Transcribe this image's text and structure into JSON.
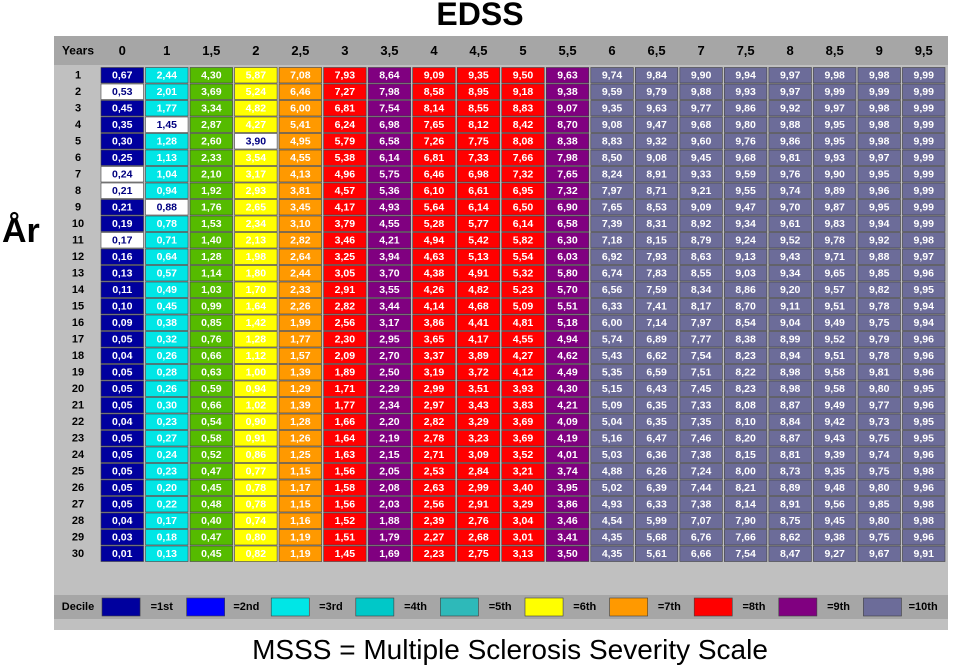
{
  "title": "EDSS",
  "y_axis_label": "År",
  "caption": "MSSS = Multiple Sclerosis Severity Scale",
  "chart_data": {
    "type": "heatmap",
    "title": "EDSS",
    "row_header": "Years",
    "ylabel": "År",
    "columns": [
      "0",
      "1",
      "1,5",
      "2",
      "2,5",
      "3",
      "3,5",
      "4",
      "4,5",
      "5",
      "5,5",
      "6",
      "6,5",
      "7",
      "7,5",
      "8",
      "8,5",
      "9",
      "9,5"
    ],
    "rows": [
      "1",
      "2",
      "3",
      "4",
      "5",
      "6",
      "7",
      "8",
      "9",
      "10",
      "11",
      "12",
      "13",
      "14",
      "15",
      "16",
      "17",
      "18",
      "19",
      "20",
      "21",
      "22",
      "23",
      "24",
      "25",
      "26",
      "27",
      "28",
      "29",
      "30"
    ],
    "values": [
      [
        "0,67",
        "2,44",
        "4,30",
        "5,87",
        "7,08",
        "7,93",
        "8,64",
        "9,09",
        "9,35",
        "9,50",
        "9,63",
        "9,74",
        "9,84",
        "9,90",
        "9,94",
        "9,97",
        "9,98",
        "9,98",
        "9,99"
      ],
      [
        "0,53",
        "2,01",
        "3,69",
        "5,24",
        "6,46",
        "7,27",
        "7,98",
        "8,58",
        "8,95",
        "9,18",
        "9,38",
        "9,59",
        "9,79",
        "9,88",
        "9,93",
        "9,97",
        "9,99",
        "9,99",
        "9,99"
      ],
      [
        "0,45",
        "1,77",
        "3,34",
        "4,82",
        "6,00",
        "6,81",
        "7,54",
        "8,14",
        "8,55",
        "8,83",
        "9,07",
        "9,35",
        "9,63",
        "9,77",
        "9,86",
        "9,92",
        "9,97",
        "9,98",
        "9,99"
      ],
      [
        "0,35",
        "1,45",
        "2,87",
        "4,27",
        "5,41",
        "6,24",
        "6,98",
        "7,65",
        "8,12",
        "8,42",
        "8,70",
        "9,08",
        "9,47",
        "9,68",
        "9,80",
        "9,88",
        "9,95",
        "9,98",
        "9,99"
      ],
      [
        "0,30",
        "1,28",
        "2,60",
        "3,90",
        "4,95",
        "5,79",
        "6,58",
        "7,26",
        "7,75",
        "8,08",
        "8,38",
        "8,83",
        "9,32",
        "9,60",
        "9,76",
        "9,86",
        "9,95",
        "9,98",
        "9,99"
      ],
      [
        "0,25",
        "1,13",
        "2,33",
        "3,54",
        "4,55",
        "5,38",
        "6,14",
        "6,81",
        "7,33",
        "7,66",
        "7,98",
        "8,50",
        "9,08",
        "9,45",
        "9,68",
        "9,81",
        "9,93",
        "9,97",
        "9,99"
      ],
      [
        "0,24",
        "1,04",
        "2,10",
        "3,17",
        "4,13",
        "4,96",
        "5,75",
        "6,46",
        "6,98",
        "7,32",
        "7,65",
        "8,24",
        "8,91",
        "9,33",
        "9,59",
        "9,76",
        "9,90",
        "9,95",
        "9,99"
      ],
      [
        "0,21",
        "0,94",
        "1,92",
        "2,93",
        "3,81",
        "4,57",
        "5,36",
        "6,10",
        "6,61",
        "6,95",
        "7,32",
        "7,97",
        "8,71",
        "9,21",
        "9,55",
        "9,74",
        "9,89",
        "9,96",
        "9,99"
      ],
      [
        "0,21",
        "0,88",
        "1,76",
        "2,65",
        "3,45",
        "4,17",
        "4,93",
        "5,64",
        "6,14",
        "6,50",
        "6,90",
        "7,65",
        "8,53",
        "9,09",
        "9,47",
        "9,70",
        "9,87",
        "9,95",
        "9,99"
      ],
      [
        "0,19",
        "0,78",
        "1,53",
        "2,34",
        "3,10",
        "3,79",
        "4,55",
        "5,28",
        "5,77",
        "6,14",
        "6,58",
        "7,39",
        "8,31",
        "8,92",
        "9,34",
        "9,61",
        "9,83",
        "9,94",
        "9,99"
      ],
      [
        "0,17",
        "0,71",
        "1,40",
        "2,13",
        "2,82",
        "3,46",
        "4,21",
        "4,94",
        "5,42",
        "5,82",
        "6,30",
        "7,18",
        "8,15",
        "8,79",
        "9,24",
        "9,52",
        "9,78",
        "9,92",
        "9,98"
      ],
      [
        "0,16",
        "0,64",
        "1,28",
        "1,98",
        "2,64",
        "3,25",
        "3,94",
        "4,63",
        "5,13",
        "5,54",
        "6,03",
        "6,92",
        "7,93",
        "8,63",
        "9,13",
        "9,43",
        "9,71",
        "9,88",
        "9,97"
      ],
      [
        "0,13",
        "0,57",
        "1,14",
        "1,80",
        "2,44",
        "3,05",
        "3,70",
        "4,38",
        "4,91",
        "5,32",
        "5,80",
        "6,74",
        "7,83",
        "8,55",
        "9,03",
        "9,34",
        "9,65",
        "9,85",
        "9,96"
      ],
      [
        "0,11",
        "0,49",
        "1,03",
        "1,70",
        "2,33",
        "2,91",
        "3,55",
        "4,26",
        "4,82",
        "5,23",
        "5,70",
        "6,56",
        "7,59",
        "8,34",
        "8,86",
        "9,20",
        "9,57",
        "9,82",
        "9,95"
      ],
      [
        "0,10",
        "0,45",
        "0,99",
        "1,64",
        "2,26",
        "2,82",
        "3,44",
        "4,14",
        "4,68",
        "5,09",
        "5,51",
        "6,33",
        "7,41",
        "8,17",
        "8,70",
        "9,11",
        "9,51",
        "9,78",
        "9,94"
      ],
      [
        "0,09",
        "0,38",
        "0,85",
        "1,42",
        "1,99",
        "2,56",
        "3,17",
        "3,86",
        "4,41",
        "4,81",
        "5,18",
        "6,00",
        "7,14",
        "7,97",
        "8,54",
        "9,04",
        "9,49",
        "9,75",
        "9,94"
      ],
      [
        "0,05",
        "0,32",
        "0,76",
        "1,28",
        "1,77",
        "2,30",
        "2,95",
        "3,65",
        "4,17",
        "4,55",
        "4,94",
        "5,74",
        "6,89",
        "7,77",
        "8,38",
        "8,99",
        "9,52",
        "9,79",
        "9,96"
      ],
      [
        "0,04",
        "0,26",
        "0,66",
        "1,12",
        "1,57",
        "2,09",
        "2,70",
        "3,37",
        "3,89",
        "4,27",
        "4,62",
        "5,43",
        "6,62",
        "7,54",
        "8,23",
        "8,94",
        "9,51",
        "9,78",
        "9,96"
      ],
      [
        "0,05",
        "0,28",
        "0,63",
        "1,00",
        "1,39",
        "1,89",
        "2,50",
        "3,19",
        "3,72",
        "4,12",
        "4,49",
        "5,35",
        "6,59",
        "7,51",
        "8,22",
        "8,98",
        "9,58",
        "9,81",
        "9,96"
      ],
      [
        "0,05",
        "0,26",
        "0,59",
        "0,94",
        "1,29",
        "1,71",
        "2,29",
        "2,99",
        "3,51",
        "3,93",
        "4,30",
        "5,15",
        "6,43",
        "7,45",
        "8,23",
        "8,98",
        "9,58",
        "9,80",
        "9,95"
      ],
      [
        "0,05",
        "0,30",
        "0,66",
        "1,02",
        "1,39",
        "1,77",
        "2,34",
        "2,97",
        "3,43",
        "3,83",
        "4,21",
        "5,09",
        "6,35",
        "7,33",
        "8,08",
        "8,87",
        "9,49",
        "9,77",
        "9,96"
      ],
      [
        "0,04",
        "0,23",
        "0,54",
        "0,90",
        "1,28",
        "1,66",
        "2,20",
        "2,82",
        "3,29",
        "3,69",
        "4,09",
        "5,04",
        "6,35",
        "7,35",
        "8,10",
        "8,84",
        "9,42",
        "9,73",
        "9,95"
      ],
      [
        "0,05",
        "0,27",
        "0,58",
        "0,91",
        "1,26",
        "1,64",
        "2,19",
        "2,78",
        "3,23",
        "3,69",
        "4,19",
        "5,16",
        "6,47",
        "7,46",
        "8,20",
        "8,87",
        "9,43",
        "9,75",
        "9,95"
      ],
      [
        "0,05",
        "0,24",
        "0,52",
        "0,86",
        "1,25",
        "1,63",
        "2,15",
        "2,71",
        "3,09",
        "3,52",
        "4,01",
        "5,03",
        "6,36",
        "7,38",
        "8,15",
        "8,81",
        "9,39",
        "9,74",
        "9,96"
      ],
      [
        "0,05",
        "0,23",
        "0,47",
        "0,77",
        "1,15",
        "1,56",
        "2,05",
        "2,53",
        "2,84",
        "3,21",
        "3,74",
        "4,88",
        "6,26",
        "7,24",
        "8,00",
        "8,73",
        "9,35",
        "9,75",
        "9,98"
      ],
      [
        "0,05",
        "0,20",
        "0,45",
        "0,78",
        "1,17",
        "1,58",
        "2,08",
        "2,63",
        "2,99",
        "3,40",
        "3,95",
        "5,02",
        "6,39",
        "7,44",
        "8,21",
        "8,89",
        "9,48",
        "9,80",
        "9,96"
      ],
      [
        "0,05",
        "0,22",
        "0,48",
        "0,78",
        "1,15",
        "1,56",
        "2,03",
        "2,56",
        "2,91",
        "3,29",
        "3,86",
        "4,93",
        "6,33",
        "7,38",
        "8,14",
        "8,91",
        "9,56",
        "9,85",
        "9,98"
      ],
      [
        "0,04",
        "0,17",
        "0,40",
        "0,74",
        "1,16",
        "1,52",
        "1,88",
        "2,39",
        "2,76",
        "3,04",
        "3,46",
        "4,54",
        "5,99",
        "7,07",
        "7,90",
        "8,75",
        "9,45",
        "9,80",
        "9,98"
      ],
      [
        "0,03",
        "0,18",
        "0,47",
        "0,80",
        "1,19",
        "1,51",
        "1,79",
        "2,27",
        "2,68",
        "3,01",
        "3,41",
        "4,35",
        "5,68",
        "6,76",
        "7,66",
        "8,62",
        "9,38",
        "9,75",
        "9,96"
      ],
      [
        "0,01",
        "0,13",
        "0,45",
        "0,82",
        "1,19",
        "1,45",
        "1,69",
        "2,23",
        "2,75",
        "3,13",
        "3,50",
        "4,35",
        "5,61",
        "6,66",
        "7,54",
        "8,47",
        "9,27",
        "9,67",
        "9,91"
      ]
    ],
    "highlighted_cells": [
      [
        1,
        0
      ],
      [
        3,
        1
      ],
      [
        4,
        3
      ],
      [
        6,
        0
      ],
      [
        7,
        0
      ],
      [
        8,
        1
      ],
      [
        10,
        0
      ]
    ],
    "legend": {
      "label": "Decile",
      "entries": [
        "=1st",
        "=2nd",
        "=3rd",
        "=4th",
        "=5th",
        "=6th",
        "=7th",
        "=8th",
        "=9th",
        "=10th"
      ],
      "colors": [
        "#00009E",
        "#0000FF",
        "#00E6E6",
        "#00C8C8",
        "#2EB9B9",
        "#FFFF00",
        "#FF9900",
        "#FF0000",
        "#800080",
        "#6C6C99"
      ]
    },
    "column_colors": [
      "#00009E",
      "#00E6E6",
      "#55BB00",
      "#FFFF00",
      "#FF9900",
      "#FF0000",
      "#800080",
      "#FF0000",
      "#FF0000",
      "#FF0000",
      "#800080",
      "#6C6C99",
      "#6C6C99",
      "#6C6C99",
      "#6C6C99",
      "#6C6C99",
      "#6C6C99",
      "#6C6C99",
      "#6C6C99"
    ],
    "text_color": "#FFFFFF",
    "highlight_text_color": "#000080"
  }
}
